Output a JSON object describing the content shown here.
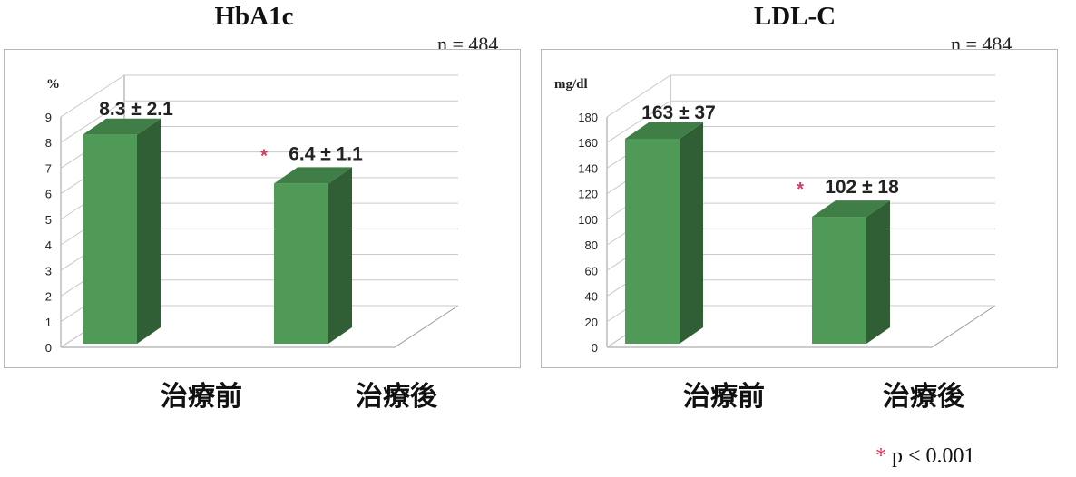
{
  "chart_data": [
    {
      "type": "bar",
      "title": "HbA1c",
      "n_label": "n = 484",
      "unit_label": "%",
      "categories": [
        "治療前",
        "治療後"
      ],
      "values": [
        8.3,
        6.4
      ],
      "value_labels": [
        "8.3 ± 2.1",
        "6.4 ± 1.1"
      ],
      "significant": [
        false,
        true
      ],
      "ylim": [
        0,
        9
      ],
      "yticks": [
        0,
        1,
        2,
        3,
        4,
        5,
        6,
        7,
        8,
        9
      ],
      "grid": true,
      "three_d": true,
      "bar_color": "#4e9a56"
    },
    {
      "type": "bar",
      "title": "LDL-C",
      "n_label": "n = 484",
      "unit_label": "mg/dl",
      "categories": [
        "治療前",
        "治療後"
      ],
      "values": [
        163,
        102
      ],
      "value_labels": [
        "163 ± 37",
        "102 ± 18"
      ],
      "significant": [
        false,
        true
      ],
      "ylim": [
        0,
        180
      ],
      "yticks": [
        0,
        20,
        40,
        60,
        80,
        100,
        120,
        140,
        160,
        180
      ],
      "grid": true,
      "three_d": true,
      "bar_color": "#4e9a56"
    }
  ],
  "footnote": {
    "star": "*",
    "text": "p < 0.001",
    "star_color": "#d9385f"
  }
}
